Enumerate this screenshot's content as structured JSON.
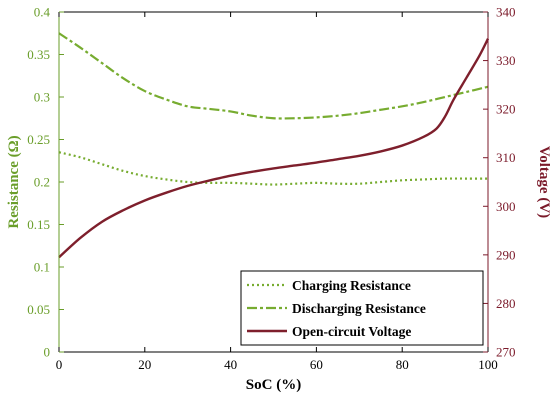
{
  "chart_data": {
    "type": "line",
    "xlabel": "SoC (%)",
    "ylabel": "Resistance (Ω)",
    "y2label": "Voltage (V)",
    "xlim": [
      0,
      100
    ],
    "ylim": [
      0,
      0.4
    ],
    "y2lim": [
      270,
      340
    ],
    "xticks": [
      0,
      20,
      40,
      60,
      80,
      100
    ],
    "yticks": [
      0,
      0.05,
      0.1,
      0.15,
      0.2,
      0.25,
      0.3,
      0.35,
      0.4
    ],
    "y2ticks": [
      270,
      280,
      290,
      300,
      310,
      320,
      330,
      340
    ],
    "grid": false,
    "legend_position": "bottom-right",
    "colors": {
      "left_axis": "#6a9e2a",
      "right_axis": "#7b1a2a"
    },
    "series": [
      {
        "name": "Charging Resistance",
        "axis": "left",
        "style": "dotted",
        "color": "#77ac30",
        "x": [
          0,
          5,
          10,
          15,
          20,
          25,
          30,
          35,
          40,
          45,
          50,
          55,
          60,
          65,
          70,
          75,
          80,
          85,
          90,
          95,
          100
        ],
        "values": [
          0.235,
          0.229,
          0.221,
          0.213,
          0.207,
          0.203,
          0.2,
          0.199,
          0.199,
          0.198,
          0.197,
          0.198,
          0.199,
          0.198,
          0.198,
          0.2,
          0.202,
          0.203,
          0.204,
          0.204,
          0.204
        ]
      },
      {
        "name": "Discharging Resistance",
        "axis": "left",
        "style": "dashdot",
        "color": "#77ac30",
        "x": [
          0,
          5,
          10,
          15,
          20,
          25,
          30,
          35,
          40,
          45,
          50,
          55,
          60,
          65,
          70,
          75,
          80,
          85,
          90,
          95,
          100
        ],
        "values": [
          0.375,
          0.358,
          0.34,
          0.322,
          0.307,
          0.297,
          0.289,
          0.286,
          0.283,
          0.278,
          0.275,
          0.275,
          0.276,
          0.278,
          0.281,
          0.285,
          0.289,
          0.294,
          0.3,
          0.306,
          0.312
        ]
      },
      {
        "name": "Open-circuit Voltage",
        "axis": "right",
        "style": "solid",
        "color": "#7e1f2c",
        "x": [
          0,
          5,
          10,
          15,
          20,
          25,
          30,
          35,
          40,
          45,
          50,
          55,
          60,
          65,
          70,
          75,
          80,
          85,
          88,
          90,
          92,
          95,
          98,
          100
        ],
        "values": [
          289.5,
          293.5,
          296.8,
          299.2,
          301.2,
          302.8,
          304.2,
          305.3,
          306.3,
          307.1,
          307.8,
          308.4,
          309.0,
          309.7,
          310.4,
          311.3,
          312.5,
          314.3,
          316,
          318.5,
          322,
          326.5,
          331,
          334.5
        ]
      }
    ]
  }
}
